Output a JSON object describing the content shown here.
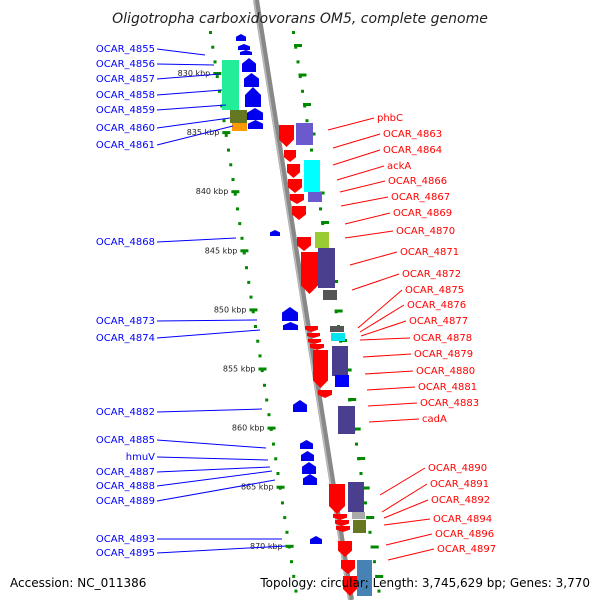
{
  "title": "Oligotropha carboxidovorans OM5, complete genome",
  "colors": {
    "left_label": "#0000ff",
    "right_label": "#ff0000",
    "ticks": "#008000",
    "axis": "#888888"
  },
  "scale_ticks": [
    "830 kbp",
    "835 kbp",
    "840 kbp",
    "845 kbp",
    "850 kbp",
    "855 kbp",
    "860 kbp",
    "865 kbp",
    "870 kbp"
  ],
  "left_labels": [
    "OCAR_4855",
    "OCAR_4856",
    "OCAR_4857",
    "OCAR_4858",
    "OCAR_4859",
    "OCAR_4860",
    "OCAR_4861",
    "OCAR_4868",
    "OCAR_4873",
    "OCAR_4874",
    "OCAR_4882",
    "OCAR_4885",
    "hmuV",
    "OCAR_4887",
    "OCAR_4888",
    "OCAR_4889",
    "OCAR_4893",
    "OCAR_4895"
  ],
  "right_labels": [
    "phbC",
    "OCAR_4863",
    "OCAR_4864",
    "ackA",
    "OCAR_4866",
    "OCAR_4867",
    "OCAR_4869",
    "OCAR_4870",
    "OCAR_4871",
    "OCAR_4872",
    "OCAR_4875",
    "OCAR_4876",
    "OCAR_4877",
    "OCAR_4878",
    "OCAR_4879",
    "OCAR_4880",
    "OCAR_4881",
    "OCAR_4883",
    "cadA",
    "OCAR_4890",
    "OCAR_4891",
    "OCAR_4892",
    "OCAR_4894",
    "OCAR_4896",
    "OCAR_4897"
  ],
  "footer": {
    "accession": "Accession: NC_011386",
    "summary": "Topology: circular; Length: 3,745,629 bp; Genes: 3,770"
  }
}
